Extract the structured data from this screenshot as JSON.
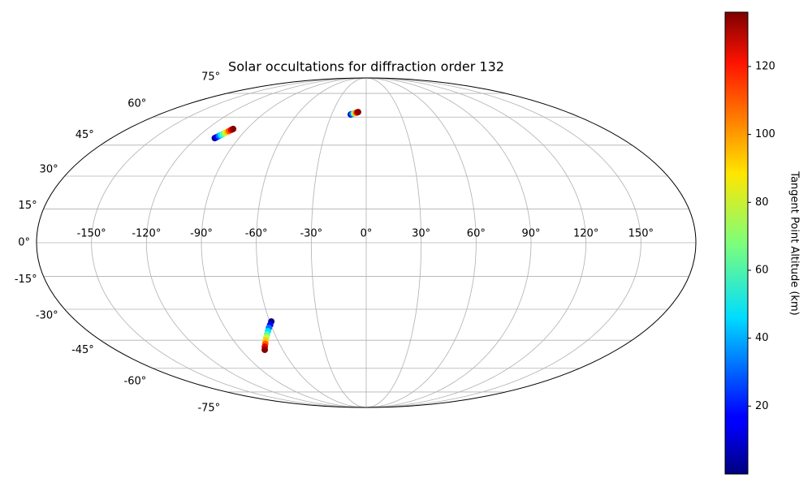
{
  "chart_data": {
    "type": "scatter",
    "projection": "mollweide",
    "title": "Solar occultations for diffraction order 132",
    "x": [
      -107,
      -106.3,
      -105.5,
      -104.8,
      -104.1,
      -103.3,
      -102.6,
      -101.9,
      -101.1,
      -100.4,
      -13.4,
      -12.2,
      -11,
      -9.7,
      -8.5,
      -7.3,
      -59,
      -60.5,
      -62.1,
      -63.6,
      -65.2,
      -66.7,
      -68.3,
      -69.8,
      -71.4,
      -72.9
    ],
    "y": [
      48.6,
      49.1,
      49.7,
      50.2,
      50.7,
      51.3,
      51.8,
      52.3,
      52.9,
      53.4,
      61.5,
      61.8,
      62.1,
      62.3,
      62.6,
      62.9,
      -35.8,
      -37.4,
      -38.9,
      -40.5,
      -42.1,
      -43.6,
      -45.2,
      -46.8,
      -48.3,
      -49.9
    ],
    "c": [
      2,
      17,
      32,
      47,
      62,
      77,
      92,
      107,
      122,
      135,
      5,
      30,
      60,
      90,
      115,
      135,
      2,
      17,
      32,
      47,
      62,
      77,
      92,
      107,
      122,
      135
    ],
    "colormap": "jet",
    "colorbar_label": "Tangent Point Altitude (km)",
    "clim": [
      0,
      136
    ],
    "cticks": [
      20,
      40,
      60,
      80,
      100,
      120
    ],
    "xlim": [
      -180,
      180
    ],
    "ylim": [
      -90,
      90
    ],
    "xticks": [
      {
        "value": -150,
        "label": "-150°"
      },
      {
        "value": -120,
        "label": "-120°"
      },
      {
        "value": -90,
        "label": "-90°"
      },
      {
        "value": -60,
        "label": "-60°"
      },
      {
        "value": -30,
        "label": "-30°"
      },
      {
        "value": 0,
        "label": "0°"
      },
      {
        "value": 30,
        "label": "30°"
      },
      {
        "value": 60,
        "label": "60°"
      },
      {
        "value": 90,
        "label": "90°"
      },
      {
        "value": 120,
        "label": "120°"
      },
      {
        "value": 150,
        "label": "150°"
      }
    ],
    "yticks": [
      {
        "value": -75,
        "label": "-75°"
      },
      {
        "value": -60,
        "label": "-60°"
      },
      {
        "value": -45,
        "label": "-45°"
      },
      {
        "value": -30,
        "label": "-30°"
      },
      {
        "value": -15,
        "label": "-15°"
      },
      {
        "value": 0,
        "label": "0°"
      },
      {
        "value": 15,
        "label": "15°"
      },
      {
        "value": 30,
        "label": "30°"
      },
      {
        "value": 45,
        "label": "45°"
      },
      {
        "value": 60,
        "label": "60°"
      },
      {
        "value": 75,
        "label": "75°"
      }
    ],
    "grid": true
  }
}
